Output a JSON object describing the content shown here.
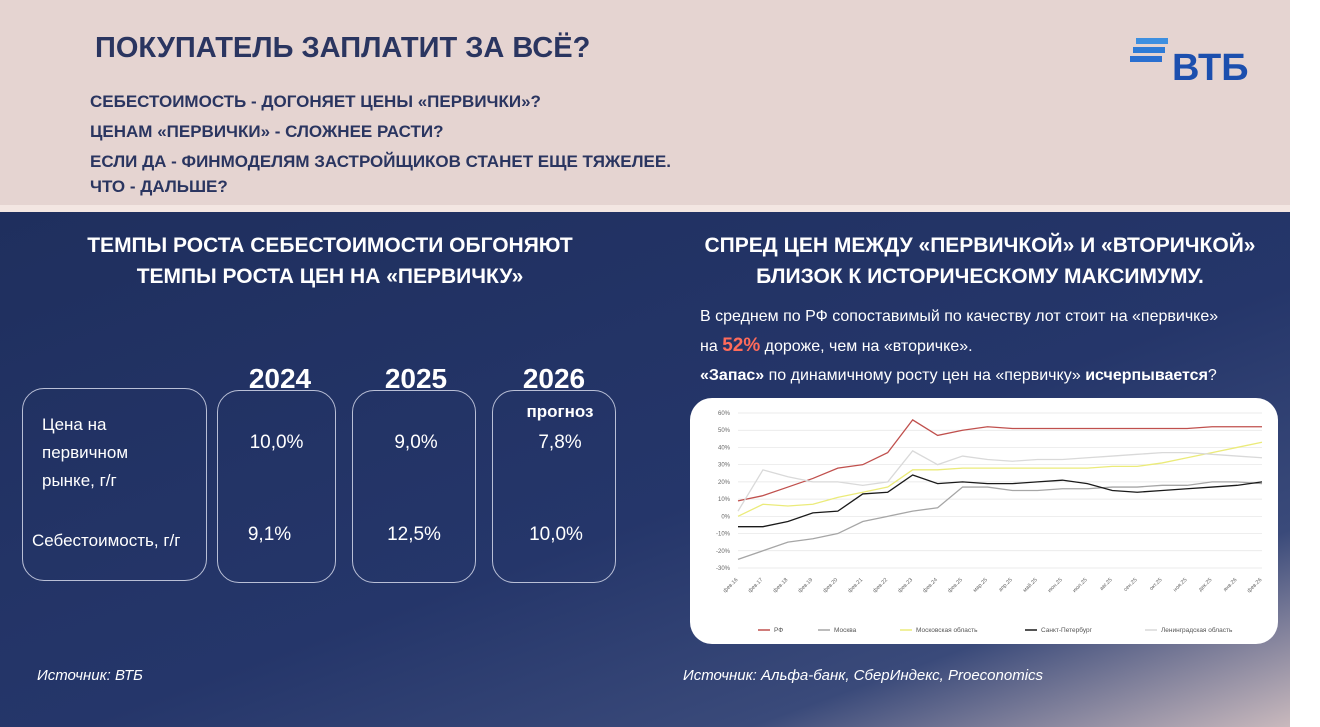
{
  "header": {
    "title": "ПОКУПАТЕЛЬ ЗАПЛАТИТ ЗА ВСЁ?",
    "questions": [
      "СЕБЕСТОИМОСТЬ - ДОГОНЯЕТ ЦЕНЫ «ПЕРВИЧКИ»?",
      "ЦЕНАМ «ПЕРВИЧКИ» - СЛОЖНЕЕ РАСТИ?",
      "ЕСЛИ ДА - ФИНМОДЕЛЯМ ЗАСТРОЙЩИКОВ СТАНЕТ ЕЩЕ ТЯЖЕЛЕЕ.",
      "ЧТО - ДАЛЬШЕ?"
    ],
    "logo": "ВТБ"
  },
  "left": {
    "title": [
      "ТЕМПЫ РОСТА СЕБЕСТОИМОСТИ ОБГОНЯЮТ",
      "ТЕМПЫ РОСТА ЦЕН НА «ПЕРВИЧКУ»"
    ],
    "table": {
      "years": [
        "2024",
        "2025",
        "2026"
      ],
      "forecast_note": "прогноз",
      "rows": [
        {
          "label": [
            "Цена на",
            "первичном",
            "рынке, г/г"
          ],
          "values": [
            "10,0%",
            "9,0%",
            "7,8%"
          ]
        },
        {
          "label": [
            "Себестоимость, г/г"
          ],
          "values": [
            "9,1%",
            "12,5%",
            "10,0%"
          ]
        }
      ]
    },
    "source": "Источник: ВТБ"
  },
  "right": {
    "title": [
      "СПРЕД ЦЕН МЕЖДУ «ПЕРВИЧКОЙ» И «ВТОРИЧКОЙ»",
      "БЛИЗОК К ИСТОРИЧЕСКОМУ МАКСИМУМУ."
    ],
    "text": [
      "В среднем по РФ сопоставимый по качеству лот стоит на «первичке»",
      "на ",
      "52%",
      " дороже, чем на «вторичке».",
      "«Запас»",
      " по динамичному росту цен на «первичку» ",
      "исчерпывается",
      "?"
    ],
    "source": "Источник: Альфа-банк, СберИндекс, Proeconomics"
  },
  "chart_data": {
    "type": "line",
    "categories": [
      "фев.16",
      "фев.17",
      "фев.18",
      "фев.19",
      "фев.20",
      "фев.21",
      "фев.22",
      "фев.23",
      "фев.24",
      "фев.25",
      "мар.25",
      "апр.25",
      "май.25",
      "июн.25",
      "июл.25",
      "авг.25",
      "сен.25",
      "окт.25",
      "ноя.25",
      "дек.25",
      "янв.26",
      "фев.26"
    ],
    "ylim": [
      -30,
      60
    ],
    "yticks": [
      {
        "value": -30,
        "label": "-30%"
      },
      {
        "value": -20,
        "label": "-20%"
      },
      {
        "value": -10,
        "label": "-10%"
      },
      {
        "value": 0,
        "label": "0%"
      },
      {
        "value": 10,
        "label": "10%"
      },
      {
        "value": 20,
        "label": "20%"
      },
      {
        "value": 30,
        "label": "30%"
      },
      {
        "value": 40,
        "label": "40%"
      },
      {
        "value": 50,
        "label": "50%"
      },
      {
        "value": 60,
        "label": "60%"
      }
    ],
    "grid": true,
    "series": [
      {
        "name": "РФ",
        "color": "#c0504d",
        "values": [
          9,
          12,
          17,
          22,
          28,
          30,
          37,
          56,
          47,
          50,
          52,
          51,
          51,
          51,
          51,
          51,
          51,
          51,
          51,
          52,
          52,
          52
        ]
      },
      {
        "name": "Москва",
        "color": "#a6a6a6",
        "values": [
          -25,
          -20,
          -15,
          -13,
          -10,
          -3,
          0,
          3,
          5,
          17,
          17,
          15,
          15,
          16,
          16,
          17,
          17,
          18,
          18,
          20,
          20,
          19
        ]
      },
      {
        "name": "Московская область",
        "color": "#ebeb7a",
        "values": [
          0,
          7,
          6,
          7,
          11,
          14,
          17,
          27,
          27,
          28,
          28,
          28,
          28,
          28,
          28,
          29,
          29,
          31,
          34,
          37,
          40,
          43
        ]
      },
      {
        "name": "Санкт-Петербург",
        "color": "#1a1a1a",
        "values": [
          -6,
          -6,
          -3,
          2,
          3,
          13,
          14,
          24,
          19,
          20,
          19,
          19,
          20,
          21,
          19,
          15,
          14,
          15,
          16,
          17,
          18,
          20
        ]
      },
      {
        "name": "Ленинградская область",
        "color": "#d9d9d9",
        "values": [
          3,
          27,
          23,
          20,
          20,
          18,
          20,
          38,
          30,
          35,
          33,
          32,
          33,
          33,
          34,
          35,
          36,
          37,
          37,
          36,
          35,
          34
        ]
      }
    ]
  }
}
